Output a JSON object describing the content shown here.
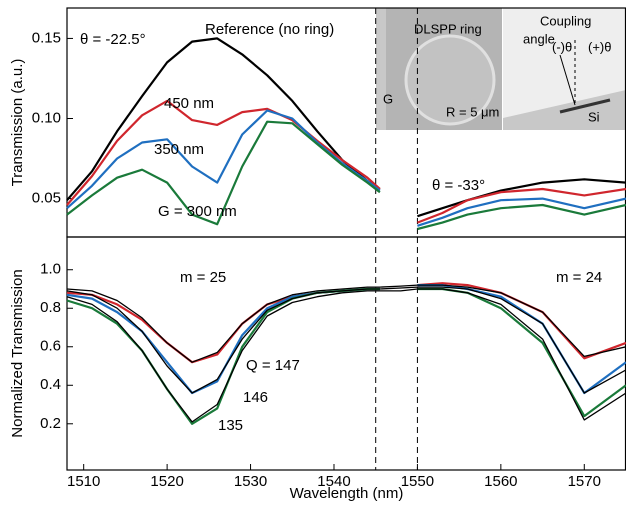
{
  "chart_data": [
    {
      "type": "line",
      "ylabel": "Transmission (a.u.)",
      "x": [
        1508,
        1511,
        1514,
        1517,
        1520,
        1523,
        1526,
        1529,
        1532,
        1535,
        1538,
        1541,
        1544,
        1545.5,
        1548,
        1550,
        1553,
        1556,
        1560,
        1565,
        1570,
        1575
      ],
      "xlim": [
        1508,
        1575
      ],
      "gap": [
        1545,
        1550
      ],
      "ylim": [
        0.026,
        0.169
      ],
      "yticks": [
        0.05,
        {
          "value": 0.1,
          "label": "0.10"
        },
        0.15
      ],
      "series": [
        {
          "name": "Reference (no ring)",
          "color": "#000000",
          "values": [
            0.049,
            0.067,
            0.092,
            0.114,
            0.135,
            0.148,
            0.15,
            0.14,
            0.127,
            0.111,
            0.092,
            0.074,
            0.061,
            0.056,
            null,
            0.039,
            0.044,
            0.049,
            0.055,
            0.06,
            0.062,
            0.06
          ]
        },
        {
          "name": "450 nm",
          "color": "#d0262d",
          "values": [
            0.046,
            0.064,
            0.086,
            0.102,
            0.111,
            0.099,
            0.096,
            0.104,
            0.106,
            0.099,
            0.086,
            0.074,
            0.063,
            0.056,
            null,
            0.035,
            0.041,
            0.049,
            0.054,
            0.056,
            0.052,
            0.056
          ]
        },
        {
          "name": "350 nm",
          "color": "#1f6fc0",
          "values": [
            0.044,
            0.058,
            0.075,
            0.085,
            0.087,
            0.07,
            0.06,
            0.09,
            0.105,
            0.1,
            0.085,
            0.072,
            0.061,
            0.055,
            null,
            0.033,
            0.038,
            0.044,
            0.049,
            0.05,
            0.044,
            0.05
          ]
        },
        {
          "name": "G = 300 nm",
          "color": "#1a7a3a",
          "values": [
            0.04,
            0.052,
            0.063,
            0.068,
            0.06,
            0.04,
            0.034,
            0.07,
            0.098,
            0.097,
            0.084,
            0.071,
            0.06,
            0.054,
            null,
            0.031,
            0.035,
            0.04,
            0.044,
            0.046,
            0.04,
            0.046
          ]
        }
      ],
      "annotations": [
        "θ = -22.5°",
        "θ = -33°",
        "DLSPP ring",
        "G",
        "R = 5 μm",
        "Coupling",
        "angle",
        "(-)θ",
        "(+)θ",
        "Si"
      ]
    },
    {
      "type": "line",
      "ylabel": "Normalized Transmission",
      "xlabel": "Wavelength (nm)",
      "x": [
        1508,
        1511,
        1514,
        1517,
        1520,
        1523,
        1526,
        1529,
        1532,
        1535,
        1538,
        1541,
        1544,
        1545.5,
        1548,
        1550,
        1553,
        1556,
        1560,
        1565,
        1570,
        1575
      ],
      "xlim": [
        1508,
        1575
      ],
      "xticks": [
        1510,
        1520,
        1530,
        1540,
        1550,
        1560,
        1570
      ],
      "gap": [
        1545,
        1550
      ],
      "ylim": [
        -0.04,
        1.17
      ],
      "yticks": [
        0.2,
        0.4,
        0.6,
        0.8,
        {
          "value": 1,
          "label": "1.0"
        }
      ],
      "series": [
        {
          "color": "#d0262d",
          "values": [
            0.88,
            0.87,
            0.82,
            0.74,
            0.62,
            0.52,
            0.56,
            0.72,
            0.82,
            0.86,
            0.88,
            0.89,
            0.9,
            0.9,
            null,
            0.92,
            0.93,
            0.92,
            0.88,
            0.78,
            0.54,
            0.62
          ]
        },
        {
          "color": "#1f6fc0",
          "values": [
            0.87,
            0.85,
            0.78,
            0.68,
            0.52,
            0.36,
            0.42,
            0.66,
            0.8,
            0.86,
            0.88,
            0.89,
            0.9,
            0.9,
            null,
            0.92,
            0.92,
            0.9,
            0.86,
            0.72,
            0.36,
            0.52
          ]
        },
        {
          "color": "#1a7a3a",
          "values": [
            0.84,
            0.8,
            0.72,
            0.58,
            0.38,
            0.2,
            0.28,
            0.6,
            0.78,
            0.85,
            0.88,
            0.89,
            0.9,
            0.9,
            null,
            0.9,
            0.9,
            0.88,
            0.8,
            0.62,
            0.24,
            0.4
          ]
        },
        {
          "name": "Q = 147",
          "color": "#000000",
          "values": [
            0.9,
            0.89,
            0.84,
            0.75,
            0.62,
            0.52,
            0.57,
            0.72,
            0.82,
            0.87,
            0.89,
            0.9,
            0.91,
            0.91,
            0.915,
            0.92,
            0.92,
            0.91,
            0.88,
            0.78,
            0.55,
            0.6
          ]
        },
        {
          "name": "146",
          "color": "#000000",
          "values": [
            0.89,
            0.87,
            0.8,
            0.68,
            0.5,
            0.36,
            0.43,
            0.64,
            0.79,
            0.85,
            0.88,
            0.89,
            0.9,
            0.9,
            0.905,
            0.91,
            0.91,
            0.9,
            0.85,
            0.72,
            0.36,
            0.48
          ]
        },
        {
          "name": "135",
          "color": "#000000",
          "values": [
            0.86,
            0.82,
            0.73,
            0.58,
            0.38,
            0.21,
            0.3,
            0.58,
            0.76,
            0.83,
            0.86,
            0.88,
            0.89,
            0.89,
            0.89,
            0.9,
            0.9,
            0.88,
            0.82,
            0.64,
            0.22,
            0.36
          ]
        }
      ],
      "annotations": [
        "m = 25",
        "m = 24"
      ]
    }
  ]
}
